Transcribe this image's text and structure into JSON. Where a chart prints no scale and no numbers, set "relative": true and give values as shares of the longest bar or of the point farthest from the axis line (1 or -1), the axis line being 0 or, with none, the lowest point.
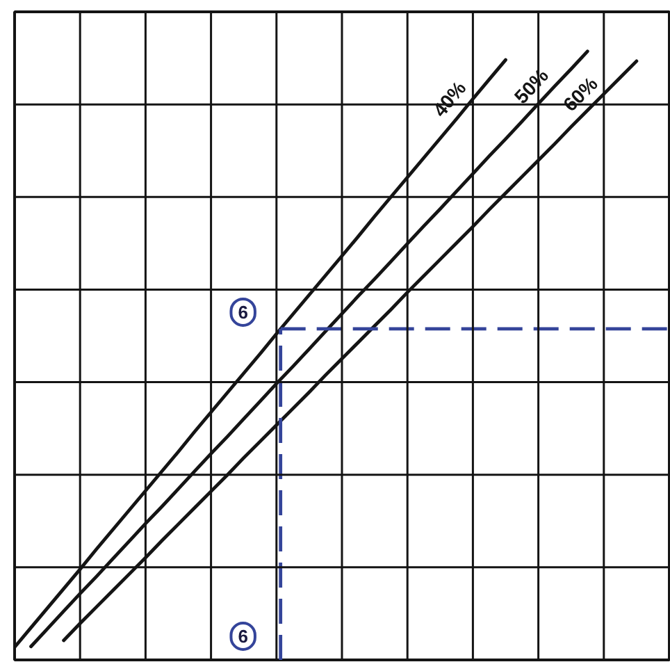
{
  "chart_data": {
    "type": "line",
    "relative": true,
    "grid": true,
    "categories": [
      null,
      null,
      null,
      null,
      null,
      null,
      null,
      null,
      null,
      null,
      null,
      null,
      null,
      null,
      null,
      null,
      null,
      null,
      null,
      null,
      null,
      null,
      null,
      null,
      null,
      null,
      null,
      null,
      null,
      null,
      null,
      null,
      null,
      null,
      null,
      null,
      null,
      null,
      null,
      null,
      null
    ],
    "series": [
      {
        "name": "40%",
        "color": "#141414",
        "values": [
          0.021,
          0.053,
          0.085,
          0.117,
          0.149,
          0.182,
          0.214,
          0.246,
          0.278,
          0.31,
          0.342,
          0.375,
          0.407,
          0.439,
          0.471,
          0.503,
          0.536,
          0.568,
          0.6,
          0.632,
          0.664,
          0.696,
          0.729,
          0.761,
          0.793,
          0.825,
          0.857,
          0.889,
          0.922,
          0.954,
          0.986,
          null,
          null,
          null,
          null,
          null,
          null,
          null,
          null,
          null,
          null
        ]
      },
      {
        "name": "50%",
        "color": "#141414",
        "values": [
          null,
          0.022,
          0.051,
          0.08,
          0.109,
          0.137,
          0.166,
          0.195,
          0.224,
          0.252,
          0.281,
          0.31,
          0.339,
          0.367,
          0.396,
          0.425,
          0.454,
          0.482,
          0.511,
          0.54,
          0.569,
          0.598,
          0.626,
          0.655,
          0.684,
          0.713,
          0.741,
          0.77,
          0.799,
          0.828,
          0.856,
          0.885,
          0.914,
          0.943,
          0.971,
          1.0,
          null,
          null,
          null,
          null,
          null
        ]
      },
      {
        "name": "60%",
        "color": "#141414",
        "values": [
          null,
          null,
          null,
          0.032,
          0.06,
          0.087,
          0.114,
          0.141,
          0.168,
          0.196,
          0.223,
          0.25,
          0.277,
          0.304,
          0.332,
          0.359,
          0.386,
          0.413,
          0.44,
          0.468,
          0.495,
          0.522,
          0.549,
          0.576,
          0.604,
          0.631,
          0.658,
          0.685,
          0.712,
          0.74,
          0.767,
          0.794,
          0.821,
          0.848,
          0.876,
          0.903,
          0.93,
          0.957,
          0.984,
          null,
          null
        ]
      }
    ],
    "ref_lines": [
      {
        "axis": "y",
        "value": 0.544,
        "color": "#34449a",
        "line_style": "dashed"
      }
    ],
    "annotations": [
      "6",
      "6"
    ]
  }
}
